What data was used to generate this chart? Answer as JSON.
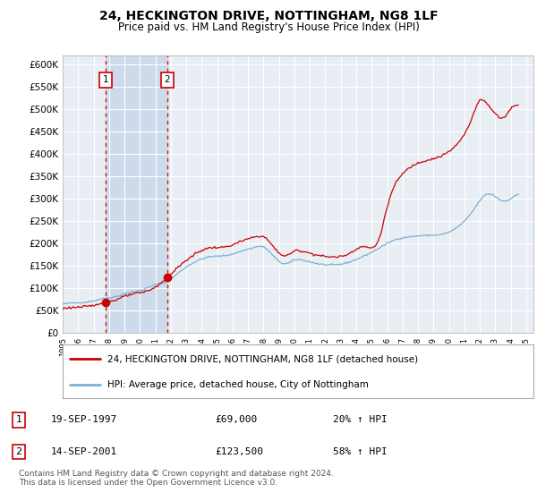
{
  "title": "24, HECKINGTON DRIVE, NOTTINGHAM, NG8 1LF",
  "subtitle": "Price paid vs. HM Land Registry's House Price Index (HPI)",
  "title_fontsize": 10,
  "subtitle_fontsize": 8.5,
  "background_color": "#ffffff",
  "plot_bg_color": "#e8eef4",
  "grid_color": "#ffffff",
  "ylim": [
    0,
    620000
  ],
  "yticks": [
    0,
    50000,
    100000,
    150000,
    200000,
    250000,
    300000,
    350000,
    400000,
    450000,
    500000,
    550000,
    600000
  ],
  "xlim_start": 1995.0,
  "xlim_end": 2025.5,
  "sale1_year": 1997,
  "sale1_month": 9,
  "sale1_price": 69000,
  "sale2_year": 2001,
  "sale2_month": 9,
  "sale2_price": 123500,
  "hpi_line_color": "#7bafd4",
  "property_line_color": "#cc0000",
  "sale_marker_color": "#cc0000",
  "dashed_line_color": "#cc0000",
  "shade_color": "#ccdaeb",
  "legend_label_red": "24, HECKINGTON DRIVE, NOTTINGHAM, NG8 1LF (detached house)",
  "legend_label_blue": "HPI: Average price, detached house, City of Nottingham",
  "annotation1": [
    "1",
    "19-SEP-1997",
    "£69,000",
    "20% ↑ HPI"
  ],
  "annotation2": [
    "2",
    "14-SEP-2001",
    "£123,500",
    "58% ↑ HPI"
  ],
  "footer": "Contains HM Land Registry data © Crown copyright and database right 2024.\nThis data is licensed under the Open Government Licence v3.0."
}
